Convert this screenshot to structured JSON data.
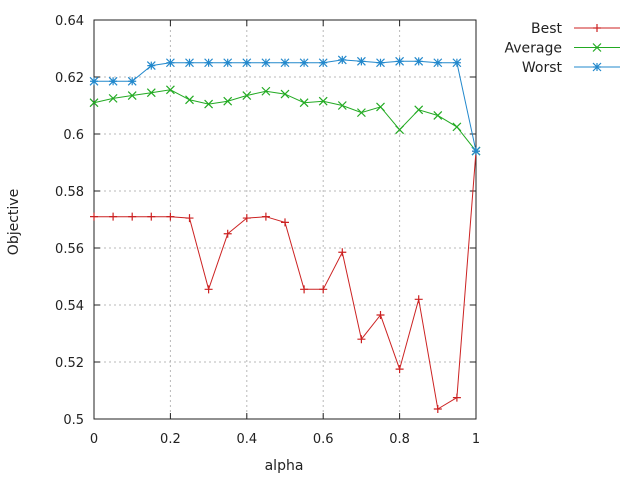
{
  "chart_data": {
    "type": "line",
    "title": "",
    "xlabel": "alpha",
    "ylabel": "Objective",
    "xlim": [
      0,
      1
    ],
    "ylim": [
      0.5,
      0.64
    ],
    "xticks": [
      0,
      0.2,
      0.4,
      0.6,
      0.8,
      1
    ],
    "xtick_labels": [
      "0",
      "0.2",
      "0.4",
      "0.6",
      "0.8",
      "1"
    ],
    "yticks": [
      0.5,
      0.52,
      0.54,
      0.56,
      0.58,
      0.6,
      0.62,
      0.64
    ],
    "ytick_labels": [
      "0.5",
      "0.52",
      "0.54",
      "0.56",
      "0.58",
      "0.6",
      "0.62",
      "0.64"
    ],
    "grid": true,
    "legend_position": "top-right",
    "x": [
      0,
      0.05,
      0.1,
      0.15,
      0.2,
      0.25,
      0.3,
      0.35,
      0.4,
      0.45,
      0.5,
      0.55,
      0.6,
      0.65,
      0.7,
      0.75,
      0.8,
      0.85,
      0.9,
      0.95,
      1
    ],
    "series": [
      {
        "name": "Best",
        "color": "#cc2222",
        "marker": "plus",
        "values": [
          0.571,
          0.571,
          0.571,
          0.571,
          0.571,
          0.5705,
          0.5455,
          0.565,
          0.5705,
          0.571,
          0.569,
          0.5455,
          0.5455,
          0.5585,
          0.528,
          0.5365,
          0.5175,
          0.542,
          0.5035,
          0.5075,
          0.594
        ]
      },
      {
        "name": "Average",
        "color": "#22aa22",
        "marker": "cross",
        "values": [
          0.611,
          0.6125,
          0.6135,
          0.6145,
          0.6155,
          0.612,
          0.6105,
          0.6115,
          0.6135,
          0.615,
          0.614,
          0.611,
          0.6115,
          0.61,
          0.6075,
          0.6095,
          0.6015,
          0.6085,
          0.6065,
          0.6025,
          0.594
        ]
      },
      {
        "name": "Worst",
        "color": "#2288cc",
        "marker": "star",
        "values": [
          0.6185,
          0.6185,
          0.6185,
          0.624,
          0.625,
          0.625,
          0.625,
          0.625,
          0.625,
          0.625,
          0.625,
          0.625,
          0.625,
          0.626,
          0.6255,
          0.625,
          0.6255,
          0.6255,
          0.625,
          0.625,
          0.594
        ]
      }
    ]
  }
}
